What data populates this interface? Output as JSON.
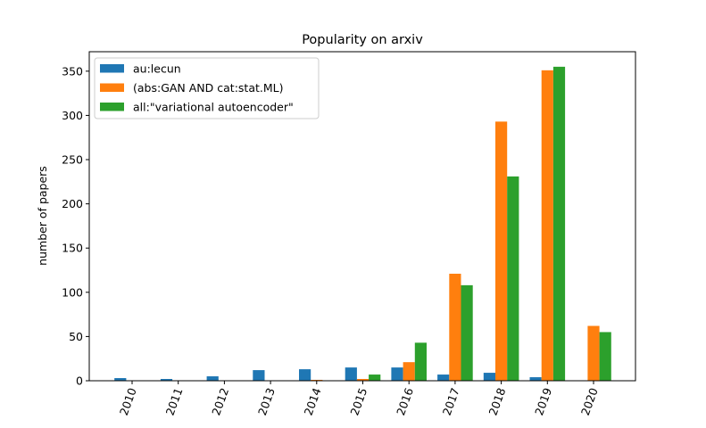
{
  "chart_data": {
    "type": "bar",
    "title": "Popularity on arxiv",
    "xlabel": "",
    "ylabel": "number of papers",
    "categories": [
      "2010",
      "2011",
      "2012",
      "2013",
      "2014",
      "2015",
      "2016",
      "2017",
      "2018",
      "2019",
      "2020"
    ],
    "ylim": [
      0,
      372
    ],
    "yticks": [
      0,
      50,
      100,
      150,
      200,
      250,
      300,
      350
    ],
    "grid": false,
    "legend_position": "top-left",
    "series": [
      {
        "name": "au:lecun",
        "color": "#1f77b4",
        "values": [
          3,
          2,
          5,
          12,
          13,
          15,
          15,
          7,
          9,
          4,
          0
        ]
      },
      {
        "name": "(abs:GAN AND cat:stat.ML)",
        "color": "#ff7f0e",
        "values": [
          0,
          0,
          0,
          0,
          1,
          2,
          21,
          121,
          293,
          351,
          62
        ]
      },
      {
        "name": "all:\"variational autoencoder\"",
        "color": "#2ca02c",
        "values": [
          0,
          0,
          0,
          0,
          0,
          7,
          43,
          108,
          231,
          355,
          55
        ]
      }
    ]
  }
}
